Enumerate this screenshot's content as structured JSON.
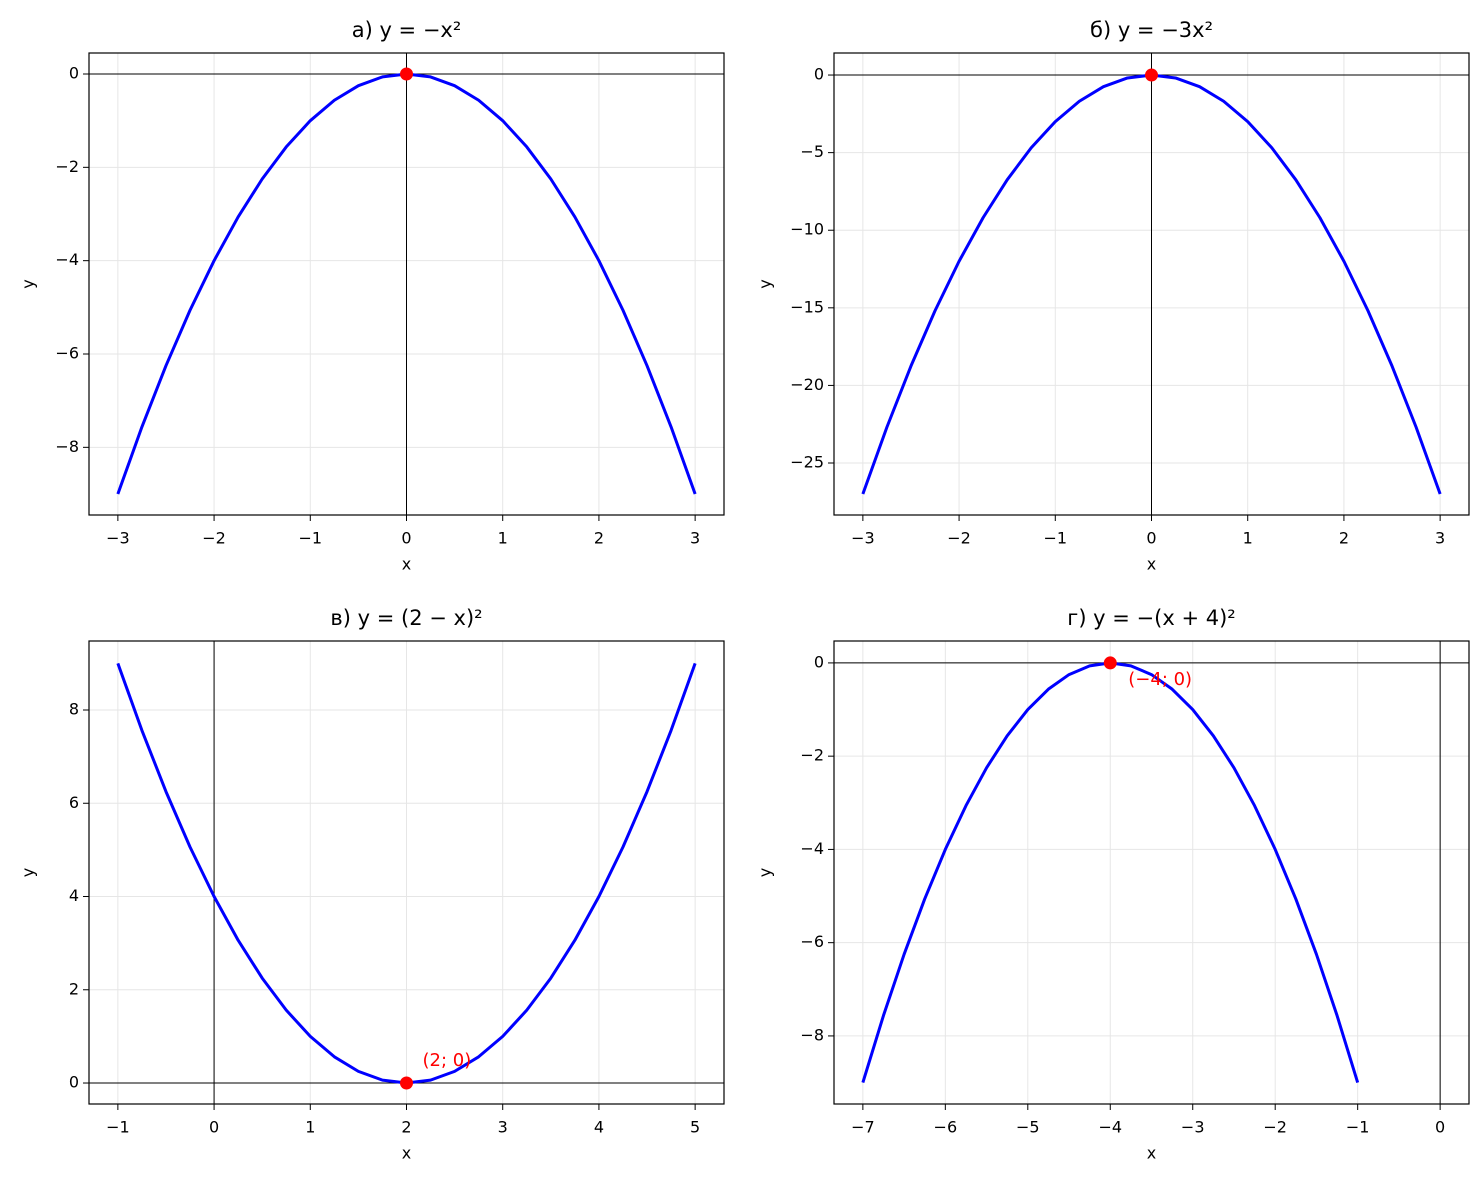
{
  "chart_data": [
    {
      "type": "line",
      "title": "а) y = −x²",
      "x_label": "x",
      "y_label": "y",
      "grid": true,
      "zero_lines": true,
      "xlim": [
        -3.3,
        3.3
      ],
      "ylim": [
        -9.45,
        0.45
      ],
      "xticks": [
        {
          "value": -3,
          "label": "−3"
        },
        {
          "value": -2,
          "label": "−2"
        },
        {
          "value": -1,
          "label": "−1"
        },
        0,
        1,
        2,
        3
      ],
      "yticks": [
        0,
        {
          "value": -2,
          "label": "−2"
        },
        {
          "value": -4,
          "label": "−4"
        },
        {
          "value": -6,
          "label": "−6"
        },
        {
          "value": -8,
          "label": "−8"
        }
      ],
      "series": [
        {
          "color": "#0000ff",
          "x": [
            -3,
            -2.75,
            -2.5,
            -2.25,
            -2,
            -1.75,
            -1.5,
            -1.25,
            -1,
            -0.75,
            -0.5,
            -0.25,
            0,
            0.25,
            0.5,
            0.75,
            1,
            1.25,
            1.5,
            1.75,
            2,
            2.25,
            2.5,
            2.75,
            3
          ],
          "values": [
            -9,
            -7.5625,
            -6.25,
            -5.0625,
            -4,
            -3.0625,
            -2.25,
            -1.5625,
            -1,
            -0.5625,
            -0.25,
            -0.0625,
            0,
            -0.0625,
            -0.25,
            -0.5625,
            -1,
            -1.5625,
            -2.25,
            -3.0625,
            -4,
            -5.0625,
            -6.25,
            -7.5625,
            -9
          ]
        },
        {
          "color": "#ff0000",
          "marker": true,
          "x": [
            0
          ],
          "values": [
            0
          ]
        }
      ]
    },
    {
      "type": "line",
      "title": "б) y = −3x²",
      "x_label": "x",
      "y_label": "y",
      "grid": true,
      "zero_lines": true,
      "xlim": [
        -3.3,
        3.3
      ],
      "ylim": [
        -28.35,
        1.42
      ],
      "xticks": [
        {
          "value": -3,
          "label": "−3"
        },
        {
          "value": -2,
          "label": "−2"
        },
        {
          "value": -1,
          "label": "−1"
        },
        0,
        1,
        2,
        3
      ],
      "yticks": [
        0,
        {
          "value": -5,
          "label": "−5"
        },
        {
          "value": -10,
          "label": "−10"
        },
        {
          "value": -15,
          "label": "−15"
        },
        {
          "value": -20,
          "label": "−20"
        },
        {
          "value": -25,
          "label": "−25"
        }
      ],
      "series": [
        {
          "color": "#0000ff",
          "x": [
            -3,
            -2.75,
            -2.5,
            -2.25,
            -2,
            -1.75,
            -1.5,
            -1.25,
            -1,
            -0.75,
            -0.5,
            -0.25,
            0,
            0.25,
            0.5,
            0.75,
            1,
            1.25,
            1.5,
            1.75,
            2,
            2.25,
            2.5,
            2.75,
            3
          ],
          "values": [
            -27,
            -22.6875,
            -18.75,
            -15.1875,
            -12,
            -9.1875,
            -6.75,
            -4.6875,
            -3,
            -1.6875,
            -0.75,
            -0.1875,
            0,
            -0.1875,
            -0.75,
            -1.6875,
            -3,
            -4.6875,
            -6.75,
            -9.1875,
            -12,
            -15.1875,
            -18.75,
            -22.6875,
            -27
          ]
        },
        {
          "color": "#ff0000",
          "marker": true,
          "x": [
            0
          ],
          "values": [
            0
          ]
        }
      ]
    },
    {
      "type": "line",
      "title": "в) y = (2 − x)²",
      "x_label": "x",
      "y_label": "y",
      "grid": true,
      "zero_lines": true,
      "xlim": [
        -1.3,
        5.3
      ],
      "ylim": [
        -0.45,
        9.48
      ],
      "xticks": [
        {
          "value": -1,
          "label": "−1"
        },
        0,
        1,
        2,
        3,
        4,
        5
      ],
      "yticks": [
        0,
        2,
        4,
        6,
        8
      ],
      "series": [
        {
          "color": "#0000ff",
          "x": [
            -1,
            -0.75,
            -0.5,
            -0.25,
            0,
            0.25,
            0.5,
            0.75,
            1,
            1.25,
            1.5,
            1.75,
            2,
            2.25,
            2.5,
            2.75,
            3,
            3.25,
            3.5,
            3.75,
            4,
            4.25,
            4.5,
            4.75,
            5
          ],
          "values": [
            9,
            7.5625,
            6.25,
            5.0625,
            4,
            3.0625,
            2.25,
            1.5625,
            1,
            0.5625,
            0.25,
            0.0625,
            0,
            0.0625,
            0.25,
            0.5625,
            1,
            1.5625,
            2.25,
            3.0625,
            4,
            5.0625,
            6.25,
            7.5625,
            9
          ]
        },
        {
          "color": "#ff0000",
          "marker": true,
          "x": [
            2
          ],
          "values": [
            0
          ]
        }
      ],
      "annotations": [
        {
          "text": "(2; 0)",
          "x": 2,
          "y": 0,
          "color": "#ff0000"
        }
      ]
    },
    {
      "type": "line",
      "title": "г) y = −(x + 4)²",
      "x_label": "x",
      "y_label": "y",
      "grid": true,
      "zero_lines": true,
      "xlim": [
        -7.35,
        0.35
      ],
      "ylim": [
        -9.46,
        0.47
      ],
      "xticks": [
        {
          "value": -7,
          "label": "−7"
        },
        {
          "value": -6,
          "label": "−6"
        },
        {
          "value": -5,
          "label": "−5"
        },
        {
          "value": -4,
          "label": "−4"
        },
        {
          "value": -3,
          "label": "−3"
        },
        {
          "value": -2,
          "label": "−2"
        },
        {
          "value": -1,
          "label": "−1"
        },
        0
      ],
      "yticks": [
        0,
        {
          "value": -2,
          "label": "−2"
        },
        {
          "value": -4,
          "label": "−4"
        },
        {
          "value": -6,
          "label": "−6"
        },
        {
          "value": -8,
          "label": "−8"
        }
      ],
      "series": [
        {
          "color": "#0000ff",
          "x": [
            -7,
            -6.75,
            -6.5,
            -6.25,
            -6,
            -5.75,
            -5.5,
            -5.25,
            -5,
            -4.75,
            -4.5,
            -4.25,
            -4,
            -3.75,
            -3.5,
            -3.25,
            -3,
            -2.75,
            -2.5,
            -2.25,
            -2,
            -1.75,
            -1.5,
            -1.25,
            -1
          ],
          "values": [
            -9,
            -7.5625,
            -6.25,
            -5.0625,
            -4,
            -3.0625,
            -2.25,
            -1.5625,
            -1,
            -0.5625,
            -0.25,
            -0.0625,
            0,
            -0.0625,
            -0.25,
            -0.5625,
            -1,
            -1.5625,
            -2.25,
            -3.0625,
            -4,
            -5.0625,
            -6.25,
            -7.5625,
            -9
          ]
        },
        {
          "color": "#ff0000",
          "marker": true,
          "x": [
            -4
          ],
          "values": [
            0
          ]
        }
      ],
      "annotations": [
        {
          "text": "(−4; 0)",
          "x": -4,
          "y": 0,
          "color": "#ff0000"
        }
      ]
    }
  ]
}
